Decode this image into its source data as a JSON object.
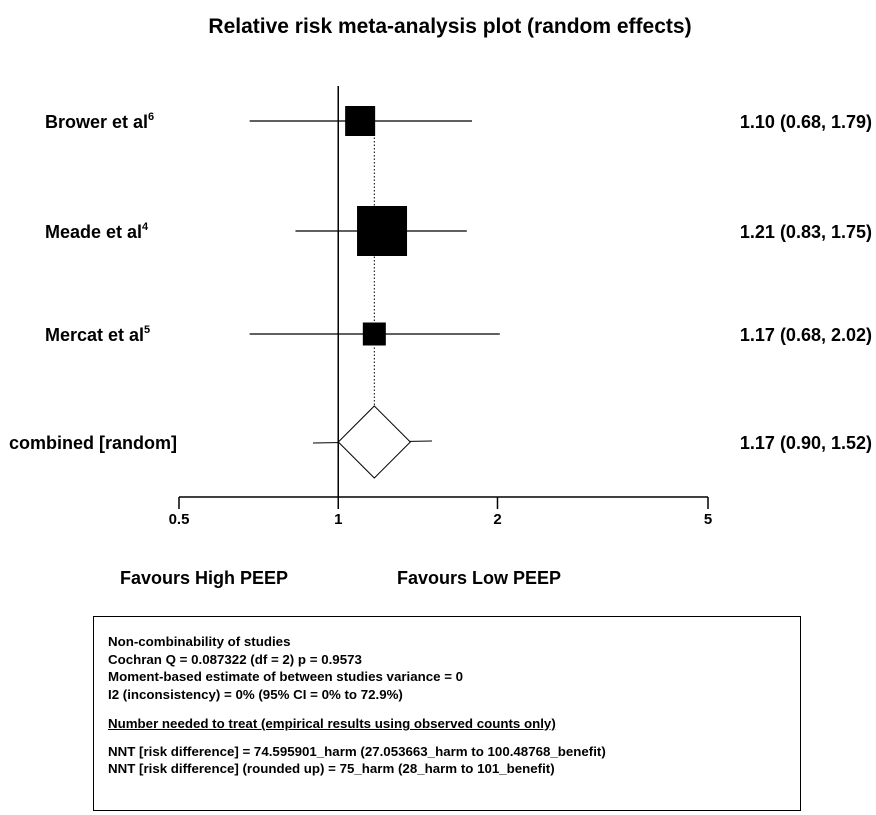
{
  "chart_data": {
    "type": "forest",
    "title": "Relative risk meta-analysis plot (random effects)",
    "x_scale": "log",
    "xlim": [
      0.5,
      5
    ],
    "x_ticks": [
      "0.5",
      "1",
      "2",
      "5"
    ],
    "reference_line": 1,
    "pooled_line": 1.17,
    "studies": [
      {
        "label": "Brower et al",
        "sup": "6",
        "rr": 1.1,
        "lo": 0.68,
        "hi": 1.79,
        "ci_text": "1.10 (0.68, 1.79)"
      },
      {
        "label": "Meade et al",
        "sup": "4",
        "rr": 1.21,
        "lo": 0.83,
        "hi": 1.75,
        "ci_text": "1.21 (0.83, 1.75)"
      },
      {
        "label": "Mercat et al",
        "sup": "5",
        "rr": 1.17,
        "lo": 0.68,
        "hi": 2.02,
        "ci_text": "1.17 (0.68, 2.02)"
      }
    ],
    "combined": {
      "label": "combined [random]",
      "rr": 1.17,
      "lo": 0.9,
      "hi": 1.52,
      "ci_text": "1.17 (0.90, 1.52)"
    },
    "favours_left": "Favours High PEEP",
    "favours_right": "Favours Low PEEP"
  },
  "stats": {
    "heterogeneity_title": "Non-combinability of studies",
    "cochran": "Cochran Q = 0.087322 (df = 2) p = 0.9573",
    "moment": "Moment-based estimate of between studies variance = 0",
    "i2": "I2 (inconsistency) = 0% (95% CI = 0% to 72.9%)",
    "nnt_title": "Number needed to treat (empirical results using observed counts only)",
    "nnt_1": "NNT [risk difference] = 74.595901_harm (27.053663_harm to 100.48768_benefit)",
    "nnt_2": "NNT [risk difference] (rounded up) = 75_harm (28_harm to 101_benefit)"
  }
}
